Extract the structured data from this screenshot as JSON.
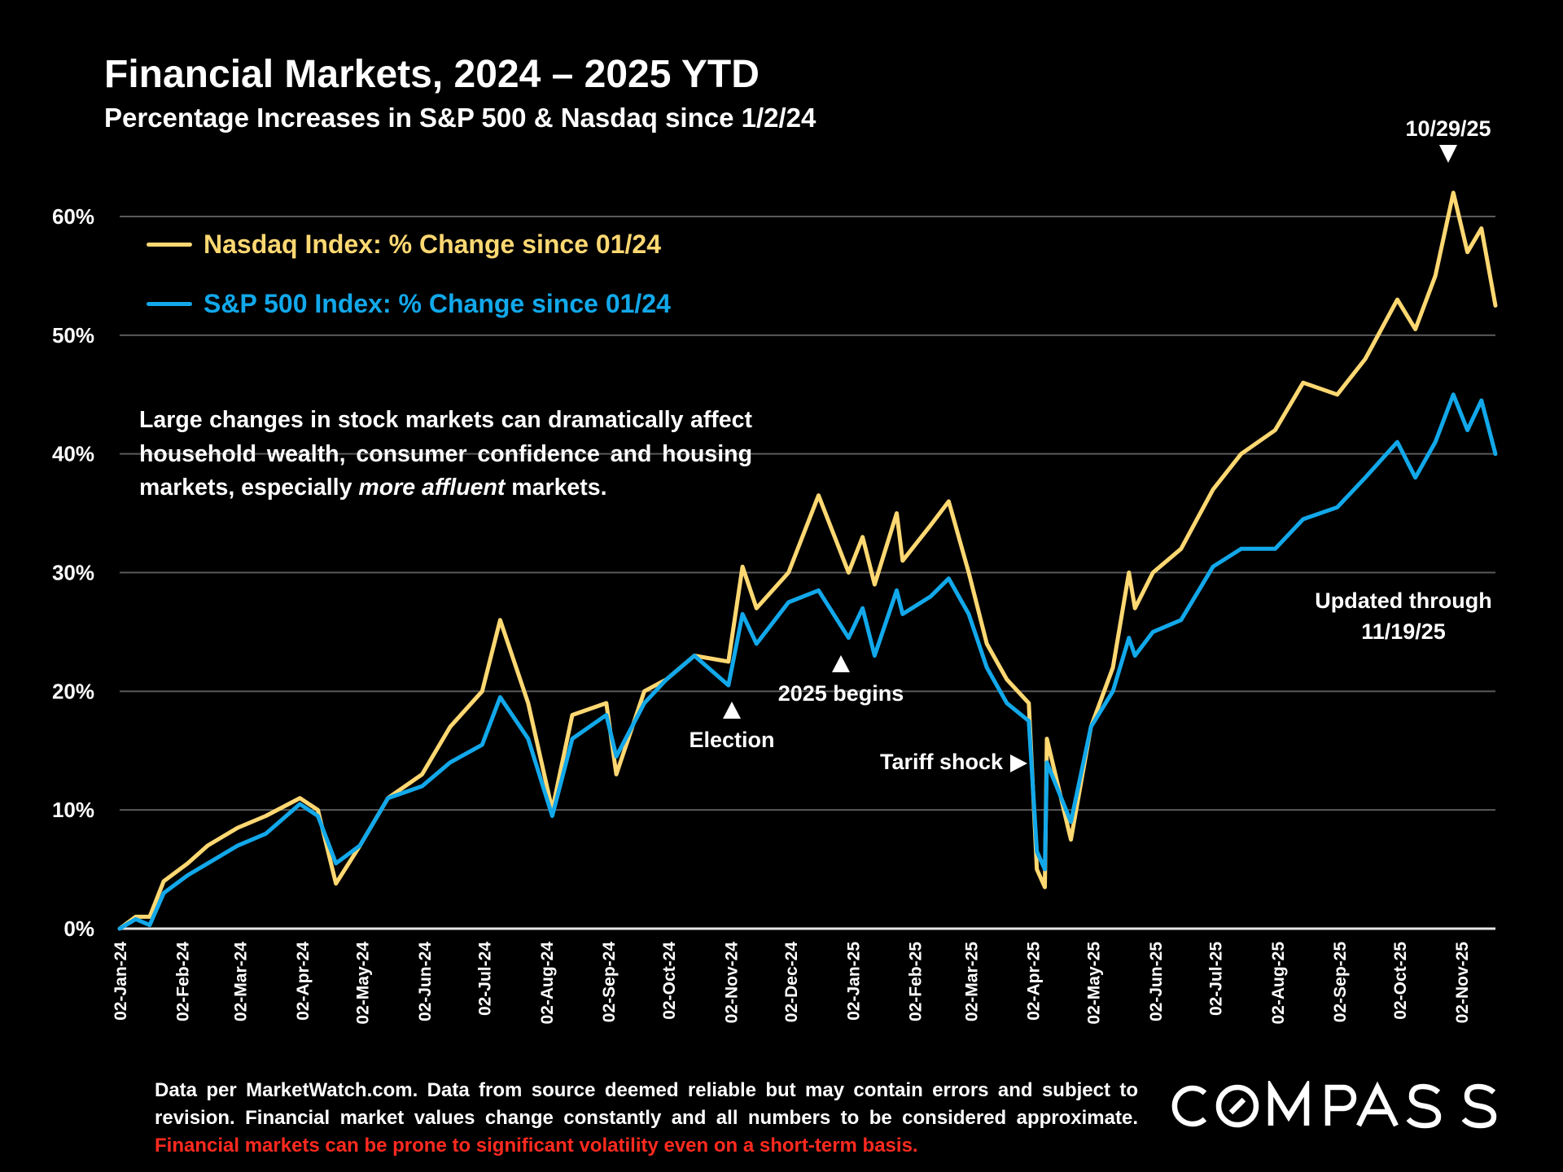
{
  "header": {
    "title": "Financial Markets, 2024 – 2025 YTD",
    "subtitle": "Percentage Increases in S&P 500 & Nasdaq since 1/2/24"
  },
  "note": {
    "part1": "Large changes in stock markets can dramatically affect household wealth, consumer confidence and housing markets, especially ",
    "italic": "more affluent",
    "part2": " markets."
  },
  "annotations": {
    "peak": "10/29/25",
    "election": "Election",
    "year_begins": "2025 begins",
    "tariff": "Tariff shock",
    "updated_line1": "Updated through",
    "updated_line2": "11/19/25"
  },
  "footer": {
    "text": "Data per MarketWatch.com. Data from source deemed reliable but may contain errors and subject to revision. Financial market values change constantly and all numbers to be considered approximate. ",
    "warning": "Financial markets can be prone to significant volatility even on a short-term basis."
  },
  "logo": {
    "text": "COMPASS"
  },
  "colors": {
    "nasdaq": "#FFD872",
    "sp500": "#12A8EA",
    "grid": "#5a5a5a",
    "warning": "#ff2a1f"
  },
  "chart_data": {
    "type": "line",
    "title": "Financial Markets, 2024 – 2025 YTD",
    "subtitle": "Percentage Increases in S&P 500 & Nasdaq since 1/2/24",
    "xlabel": "",
    "ylabel": "",
    "ylim": [
      0,
      60
    ],
    "xlim": [
      "2024-01-02",
      "2025-11-19"
    ],
    "grid": true,
    "legend_placement": "top-left",
    "yticks": [
      "0%",
      "10%",
      "20%",
      "30%",
      "40%",
      "50%",
      "60%"
    ],
    "xticks": [
      "02-Jan-24",
      "02-Feb-24",
      "02-Mar-24",
      "02-Apr-24",
      "02-May-24",
      "02-Jun-24",
      "02-Jul-24",
      "02-Aug-24",
      "02-Sep-24",
      "02-Oct-24",
      "02-Nov-24",
      "02-Dec-24",
      "02-Jan-25",
      "02-Feb-25",
      "02-Mar-25",
      "02-Apr-25",
      "02-May-25",
      "02-Jun-25",
      "02-Jul-25",
      "02-Aug-25",
      "02-Sep-25",
      "02-Oct-25",
      "02-Nov-25"
    ],
    "x": [
      "2024-01-02",
      "2024-01-10",
      "2024-01-17",
      "2024-01-24",
      "2024-02-05",
      "2024-02-15",
      "2024-03-01",
      "2024-03-15",
      "2024-04-01",
      "2024-04-10",
      "2024-04-19",
      "2024-05-01",
      "2024-05-15",
      "2024-06-01",
      "2024-06-15",
      "2024-07-01",
      "2024-07-10",
      "2024-07-24",
      "2024-08-05",
      "2024-08-15",
      "2024-09-01",
      "2024-09-06",
      "2024-09-20",
      "2024-10-01",
      "2024-10-15",
      "2024-11-01",
      "2024-11-08",
      "2024-11-15",
      "2024-12-01",
      "2024-12-16",
      "2024-12-31",
      "2025-01-07",
      "2025-01-13",
      "2025-01-24",
      "2025-01-27",
      "2025-02-10",
      "2025-02-19",
      "2025-03-01",
      "2025-03-10",
      "2025-03-20",
      "2025-03-31",
      "2025-04-04",
      "2025-04-08",
      "2025-04-09",
      "2025-04-21",
      "2025-05-01",
      "2025-05-12",
      "2025-05-20",
      "2025-05-23",
      "2025-06-01",
      "2025-06-15",
      "2025-07-01",
      "2025-07-15",
      "2025-08-01",
      "2025-08-15",
      "2025-09-01",
      "2025-09-15",
      "2025-10-01",
      "2025-10-10",
      "2025-10-20",
      "2025-10-29",
      "2025-11-05",
      "2025-11-12",
      "2025-11-19"
    ],
    "series": [
      {
        "name": "Nasdaq Index: % Change since 01/24",
        "color": "#FFD872",
        "values": [
          0,
          1,
          1,
          4,
          5.5,
          7,
          8.5,
          9.5,
          11,
          10,
          3.8,
          7,
          11,
          13,
          17,
          20,
          26,
          19,
          10,
          18,
          19,
          13,
          20,
          21,
          23,
          22.5,
          30.5,
          27,
          30,
          36.5,
          30,
          33,
          29,
          35,
          31,
          34,
          36,
          30,
          24,
          21,
          19,
          5,
          3.5,
          16,
          7.5,
          17,
          22,
          30,
          27,
          30,
          32,
          37,
          40,
          42,
          46,
          45,
          48,
          53,
          50.5,
          55,
          62,
          57,
          59,
          52.5
        ]
      },
      {
        "name": "S&P 500 Index: % Change since 01/24",
        "color": "#12A8EA",
        "values": [
          0,
          0.8,
          0.3,
          3,
          4.5,
          5.5,
          7,
          8,
          10.5,
          9.5,
          5.5,
          7,
          11,
          12,
          14,
          15.5,
          19.5,
          16,
          9.5,
          16,
          18,
          14.5,
          19,
          21,
          23,
          20.5,
          26.5,
          24,
          27.5,
          28.5,
          24.5,
          27,
          23,
          28.5,
          26.5,
          28,
          29.5,
          26.5,
          22,
          19,
          17.5,
          6.5,
          5,
          14,
          9,
          17,
          20,
          24.5,
          23,
          25,
          26,
          30.5,
          32,
          32,
          34.5,
          35.5,
          38,
          41,
          38,
          41,
          45,
          42,
          44.5,
          40
        ]
      }
    ]
  }
}
